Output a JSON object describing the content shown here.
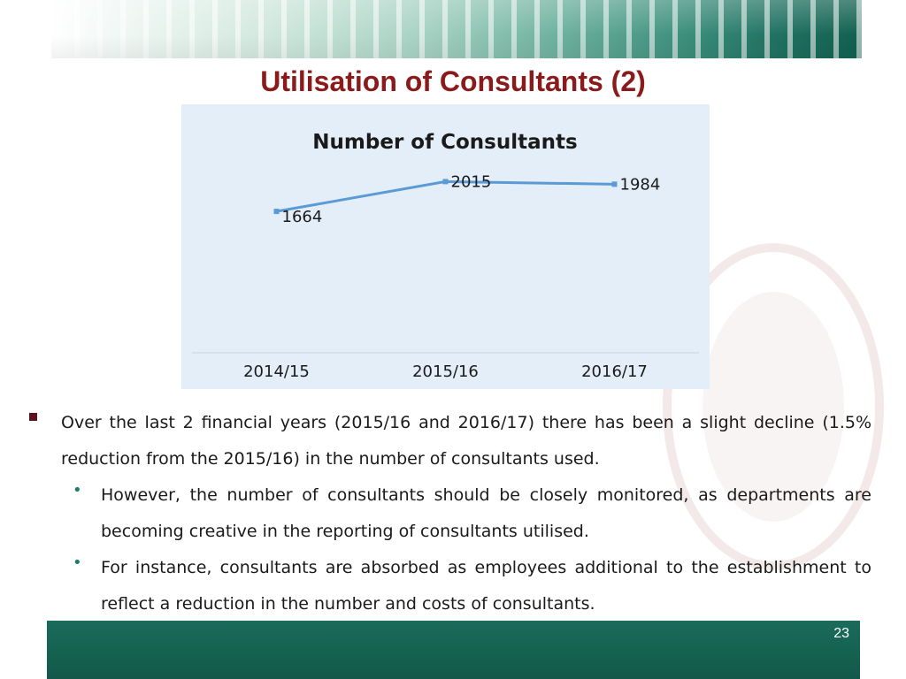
{
  "slide": {
    "title": "Utilisation of Consultants (2)",
    "page_number": "23"
  },
  "chart_data": {
    "type": "line",
    "title": "Number of Consultants",
    "categories": [
      "2014/15",
      "2015/16",
      "2016/17"
    ],
    "series": [
      {
        "values": [
          1664,
          2015,
          1984
        ],
        "color": "#5b9bd5"
      }
    ],
    "data_labels": [
      "1664",
      "2015",
      "1984"
    ],
    "ylim": [
      0,
      2300
    ],
    "grid": false,
    "legend": "none",
    "y_axis_visible": false
  },
  "bullets": [
    {
      "level": 1,
      "text": "Over the last 2 financial years (2015/16 and 2016/17) there has been a slight decline (1.5% reduction from the 2015/16) in the number of consultants used."
    },
    {
      "level": 2,
      "text": "However, the number of consultants should be closely monitored, as departments are becoming creative in the reporting of consultants utilised."
    },
    {
      "level": 2,
      "text": "For instance, consultants are absorbed as employees additional to the establishment to reflect a reduction in the number and costs of consultants."
    }
  ],
  "colors": {
    "title": "#8b1a1a",
    "band": "#15614f",
    "chart_bg": "#e4eef8",
    "bullet_square": "#5c1020",
    "bullet_dot": "#1f7a70"
  }
}
